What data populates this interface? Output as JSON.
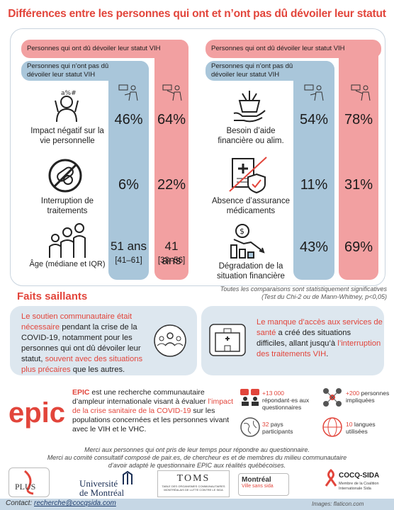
{
  "title": "Différences entre les personnes qui ont et n’ont pas dû dévoiler leur statut",
  "groups": {
    "disclosed": "Personnes qui ont dû dévoiler leur statut VIH",
    "not_disclosed": "Personnes qui n’ont pas dû dévoiler leur statut VIH"
  },
  "left_rows": [
    {
      "label": "Impact négatif sur la vie personnelle",
      "not_disclosed": "46%",
      "disclosed": "64%",
      "icon": "stressed-person-icon"
    },
    {
      "label": "Interruption de traitements",
      "not_disclosed": "6%",
      "disclosed": "22%",
      "icon": "no-pills-icon"
    },
    {
      "label": "Âge (médiane et IQR)",
      "not_disclosed": "51 ans",
      "not_disclosed_range": "[41–61]",
      "disclosed": "41 ans",
      "disclosed_range": "[33–56]",
      "icon": "family-icon"
    }
  ],
  "right_rows": [
    {
      "label": "Besoin d’aide financière ou alim.",
      "not_disclosed": "54%",
      "disclosed": "78%",
      "icon": "food-aid-icon"
    },
    {
      "label": "Absence d’assurance médicaments",
      "not_disclosed": "11%",
      "disclosed": "31%",
      "icon": "insurance-icon"
    },
    {
      "label": "Dégradation de la situation financière",
      "not_disclosed": "43%",
      "disclosed": "69%",
      "icon": "financial-decline-icon"
    }
  ],
  "footnote": {
    "line1": "Toutes les comparaisons sont statistiquement significatives",
    "line2": "(Test du Chi-2 ou de Mann-Whitney, p<0,05)"
  },
  "highlights": {
    "heading": "Faits saillants",
    "left": {
      "red1": "Le soutien communautaire était nécessaire",
      "text1": " pendant la crise de la COVID-19, notamment pour les personnes qui ont dû dévoiler leur statut, ",
      "red2": "souvent avec des situations plus précaires",
      "text2": " que les autres."
    },
    "right": {
      "red1": "Le manque d’accès aux services de santé",
      "text1": " a créé des situations difficiles, allant jusqu’à ",
      "red2": "l’interruption des traitements VIH",
      "text2": "."
    }
  },
  "epic": {
    "logo": "epic",
    "name": "EPIC",
    "text1": " est une recherche communautaire d’ampleur internationale visant à évaluer ",
    "red": "l’impact de la crise sanitaire de la COVID-19",
    "text2": " sur les populations concernées et les personnes vivant avec le VIH et le VHC.",
    "stats": [
      {
        "value": "+13 000",
        "label": "répondant·es aux questionnaires"
      },
      {
        "value": "+200",
        "label": "personnes impliquées"
      },
      {
        "value": "32",
        "label": "pays participants"
      },
      {
        "value": "10",
        "label": "langues utilisées"
      }
    ]
  },
  "thanks": {
    "line1": "Merci aux personnes qui ont pris de leur temps pour répondre au questionnaire.",
    "line2": "Merci au comité consultatif composé de pair.es, de chercheur es et de membres du milieu communautaire",
    "line3": "d’avoir adapté le questionnaire EPIC aux réalités québécoises."
  },
  "logos": {
    "plus": "PLUS",
    "udem1": "Université",
    "udem2": "de Montréal",
    "toms": "TOMS",
    "toms_sub": "TABLE DES ORGANISMES COMMUNAUTAIRES MONTRÉALAIS DE LUTTE CONTRE LE SIDA",
    "mtl": "Montréal",
    "mtl_sub": "Ville sans sida",
    "cocq": "COCQ-SIDA",
    "cocq_sub": "Membre de la Coalition Internationale Sida"
  },
  "contact_label": "Contact:",
  "contact_email": "recherche@cocqsida.com",
  "credits": "Images: flaticon.com",
  "colors": {
    "accent": "#e2453b",
    "pink": "#f2a0a1",
    "blue": "#a9c6da"
  }
}
